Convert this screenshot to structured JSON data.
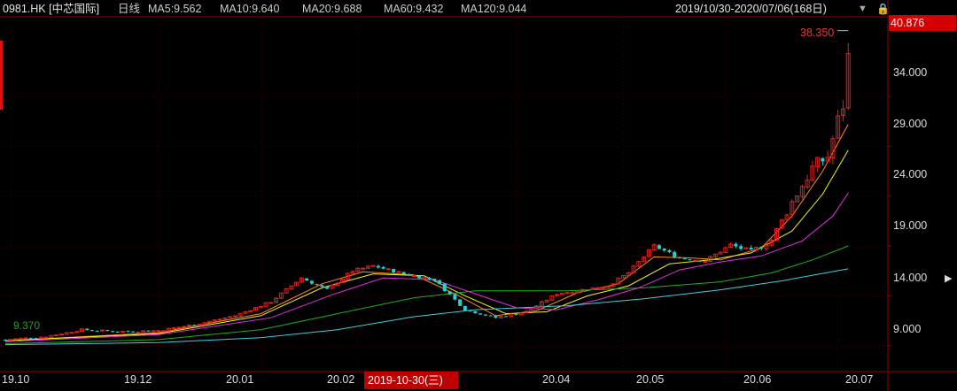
{
  "header": {
    "ticker": "0981.HK [中芯国际]",
    "period": "日线",
    "ma5": "MA5:9.562",
    "ma10": "MA10:9.640",
    "ma20": "MA20:9.688",
    "ma60": "MA60:9.432",
    "ma120": "MA120:9.044",
    "range": "2019/10/30-2020/07/06(168日)",
    "dropdown_icon": "▼",
    "lock_icon": "🔒"
  },
  "price_axis": {
    "last_price": "40.876",
    "ticks": [
      "34.000",
      "29.000",
      "24.000",
      "19.000",
      "14.000",
      "9.000"
    ]
  },
  "date_axis": {
    "ticks": [
      "19.10",
      "19.12",
      "20.01",
      "20.02",
      "20.04",
      "20.05",
      "20.06",
      "20.07"
    ],
    "cursor_date": "2019-10-30(三)"
  },
  "annotations": {
    "high_label": "38.350",
    "low_label": "9.370"
  },
  "colors": {
    "up": "#e02020",
    "down": "#22d0d0",
    "ma5": "#ff8c1a",
    "ma10": "#f0f020",
    "ma20": "#e030e0",
    "ma60": "#20b020",
    "ma120": "#40d0e0",
    "grid": "#3a0000"
  },
  "chart_data": {
    "type": "candlestick",
    "ylim": [
      6.4,
      41.9
    ],
    "yticks": [
      9,
      14,
      19,
      24,
      29,
      34
    ],
    "xticks": [
      {
        "label": "19.10",
        "index": 1
      },
      {
        "label": "19.12",
        "index": 30
      },
      {
        "label": "20.01",
        "index": 50
      },
      {
        "label": "20.02",
        "index": 69
      },
      {
        "label": "20.04",
        "index": 100
      },
      {
        "label": "20.05",
        "index": 121
      },
      {
        "label": "20.06",
        "index": 141
      },
      {
        "label": "20.07",
        "index": 163
      }
    ],
    "anchors": [
      {
        "i": 0,
        "v": 9.6
      },
      {
        "i": 8,
        "v": 9.9
      },
      {
        "i": 15,
        "v": 10.6
      },
      {
        "i": 22,
        "v": 10.4
      },
      {
        "i": 30,
        "v": 10.5
      },
      {
        "i": 38,
        "v": 11.2
      },
      {
        "i": 45,
        "v": 12.0
      },
      {
        "i": 52,
        "v": 13.4
      },
      {
        "i": 58,
        "v": 15.8
      },
      {
        "i": 63,
        "v": 14.6
      },
      {
        "i": 68,
        "v": 16.5
      },
      {
        "i": 72,
        "v": 17.0
      },
      {
        "i": 78,
        "v": 16.2
      },
      {
        "i": 84,
        "v": 15.6
      },
      {
        "i": 90,
        "v": 12.6
      },
      {
        "i": 96,
        "v": 11.8
      },
      {
        "i": 102,
        "v": 12.4
      },
      {
        "i": 108,
        "v": 14.2
      },
      {
        "i": 113,
        "v": 14.6
      },
      {
        "i": 118,
        "v": 15.0
      },
      {
        "i": 122,
        "v": 16.3
      },
      {
        "i": 127,
        "v": 19.0
      },
      {
        "i": 132,
        "v": 17.8
      },
      {
        "i": 137,
        "v": 17.5
      },
      {
        "i": 142,
        "v": 19.1
      },
      {
        "i": 146,
        "v": 18.4
      },
      {
        "i": 150,
        "v": 19.6
      },
      {
        "i": 154,
        "v": 23.4
      },
      {
        "i": 158,
        "v": 26.8
      },
      {
        "i": 161,
        "v": 28.0
      },
      {
        "i": 163,
        "v": 31.5
      },
      {
        "i": 164,
        "v": 33.2
      },
      {
        "i": 165,
        "v": 38.3
      }
    ],
    "ma_lines": [
      {
        "name": "MA5",
        "points": [
          [
            0,
            9.5
          ],
          [
            30,
            10.3
          ],
          [
            50,
            12.2
          ],
          [
            62,
            15.2
          ],
          [
            70,
            16.4
          ],
          [
            80,
            16.1
          ],
          [
            88,
            14.2
          ],
          [
            96,
            12.0
          ],
          [
            104,
            12.5
          ],
          [
            112,
            14.3
          ],
          [
            120,
            15.2
          ],
          [
            127,
            17.9
          ],
          [
            134,
            17.8
          ],
          [
            140,
            17.6
          ],
          [
            148,
            18.8
          ],
          [
            154,
            22.0
          ],
          [
            160,
            26.5
          ],
          [
            165,
            31.2
          ]
        ]
      },
      {
        "name": "MA10",
        "points": [
          [
            0,
            9.5
          ],
          [
            30,
            10.2
          ],
          [
            50,
            12.0
          ],
          [
            62,
            14.8
          ],
          [
            72,
            16.2
          ],
          [
            82,
            16.0
          ],
          [
            90,
            14.0
          ],
          [
            98,
            12.2
          ],
          [
            106,
            12.4
          ],
          [
            114,
            14.0
          ],
          [
            122,
            15.0
          ],
          [
            130,
            17.2
          ],
          [
            138,
            17.6
          ],
          [
            146,
            18.3
          ],
          [
            154,
            20.5
          ],
          [
            160,
            24.2
          ],
          [
            165,
            28.6
          ]
        ]
      },
      {
        "name": "MA20",
        "points": [
          [
            0,
            9.4
          ],
          [
            30,
            10.1
          ],
          [
            52,
            11.8
          ],
          [
            64,
            14.1
          ],
          [
            74,
            15.8
          ],
          [
            84,
            15.6
          ],
          [
            92,
            14.2
          ],
          [
            100,
            12.8
          ],
          [
            108,
            12.6
          ],
          [
            116,
            13.6
          ],
          [
            124,
            14.8
          ],
          [
            132,
            16.6
          ],
          [
            140,
            17.4
          ],
          [
            148,
            18.0
          ],
          [
            156,
            19.5
          ],
          [
            162,
            22.0
          ],
          [
            165,
            24.3
          ]
        ]
      },
      {
        "name": "MA60",
        "points": [
          [
            0,
            9.2
          ],
          [
            30,
            9.6
          ],
          [
            50,
            10.6
          ],
          [
            65,
            12.2
          ],
          [
            80,
            13.8
          ],
          [
            92,
            14.5
          ],
          [
            110,
            14.5
          ],
          [
            125,
            14.8
          ],
          [
            140,
            15.4
          ],
          [
            150,
            16.3
          ],
          [
            158,
            17.6
          ],
          [
            165,
            19.0
          ]
        ]
      },
      {
        "name": "MA120",
        "points": [
          [
            0,
            9.1
          ],
          [
            30,
            9.3
          ],
          [
            50,
            9.8
          ],
          [
            65,
            10.6
          ],
          [
            80,
            11.9
          ],
          [
            92,
            12.6
          ],
          [
            110,
            13.0
          ],
          [
            125,
            13.7
          ],
          [
            140,
            14.6
          ],
          [
            152,
            15.5
          ],
          [
            165,
            16.7
          ]
        ]
      }
    ]
  }
}
